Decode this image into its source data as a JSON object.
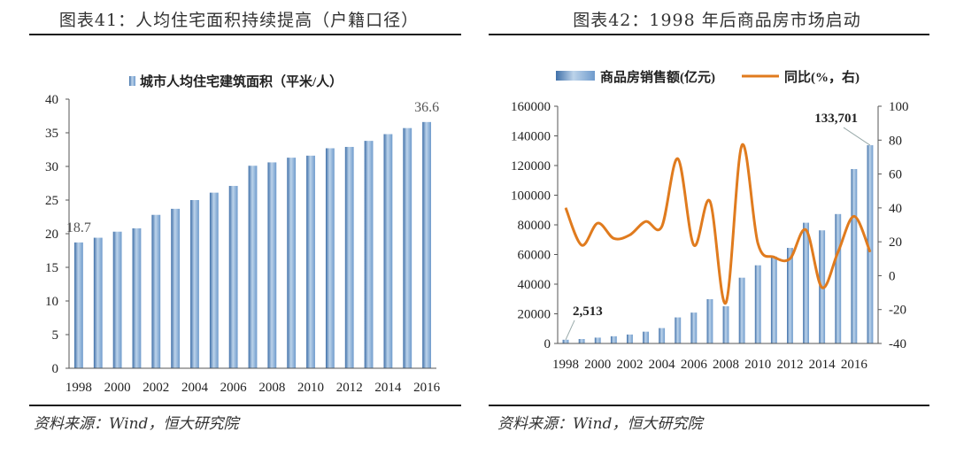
{
  "left": {
    "figure_title": "图表41：人均住宅面积持续提高（户籍口径）",
    "source": "资料来源：Wind，恒大研究院"
  },
  "right": {
    "figure_title": "图表42：1998 年后商品房市场启动",
    "source": "资料来源：Wind，恒大研究院"
  },
  "colors": {
    "bar_light": "#bcd3ea",
    "bar_mid": "#6f9bcc",
    "bar_dark": "#3f6fa8",
    "line_orange": "#e07b1e",
    "axis": "#555555"
  },
  "chart_data": [
    {
      "type": "bar",
      "title": "城市人均住宅建筑面积（平米/人）",
      "legend": "城市人均住宅建筑面积（平米/人）",
      "categories": [
        "1998",
        "1999",
        "2000",
        "2001",
        "2002",
        "2003",
        "2004",
        "2005",
        "2006",
        "2007",
        "2008",
        "2009",
        "2010",
        "2011",
        "2012",
        "2013",
        "2014",
        "2015",
        "2016"
      ],
      "x_tick_labels": [
        "1998",
        "2000",
        "2002",
        "2004",
        "2006",
        "2008",
        "2010",
        "2012",
        "2014",
        "2016"
      ],
      "values": [
        18.7,
        19.4,
        20.3,
        20.8,
        22.8,
        23.7,
        25.0,
        26.1,
        27.1,
        30.1,
        30.6,
        31.3,
        31.6,
        32.7,
        32.9,
        33.8,
        34.8,
        35.7,
        36.6
      ],
      "ylim": [
        0,
        40
      ],
      "yticks": [
        0,
        5,
        10,
        15,
        20,
        25,
        30,
        35,
        40
      ],
      "annotations": [
        {
          "category": "1998",
          "text": "18.7"
        },
        {
          "category": "2016",
          "text": "36.6"
        }
      ],
      "xlabel": "",
      "ylabel": ""
    },
    {
      "type": "bar+line",
      "categories": [
        "1998",
        "1999",
        "2000",
        "2001",
        "2002",
        "2003",
        "2004",
        "2005",
        "2006",
        "2007",
        "2008",
        "2009",
        "2010",
        "2011",
        "2012",
        "2013",
        "2014",
        "2015",
        "2016",
        "2017"
      ],
      "x_tick_labels": [
        "1998",
        "2000",
        "2002",
        "2004",
        "2006",
        "2008",
        "2010",
        "2012",
        "2014",
        "2016"
      ],
      "series": [
        {
          "name": "商品房销售额(亿元)",
          "type": "bar",
          "axis": "left",
          "values": [
            2513,
            2988,
            3935,
            4863,
            6032,
            7956,
            10376,
            17576,
            20826,
            29889,
            25068,
            44355,
            52721,
            58589,
            64456,
            81428,
            76292,
            87281,
            117627,
            133701
          ]
        },
        {
          "name": "同比(%，右)",
          "type": "line",
          "axis": "right",
          "values": [
            40,
            18,
            31,
            22,
            24,
            32,
            29,
            69,
            18,
            44,
            -16,
            77,
            19,
            11,
            10,
            27,
            -7,
            14,
            35,
            14
          ]
        }
      ],
      "ylim_left": [
        0,
        160000
      ],
      "yticks_left": [
        0,
        20000,
        40000,
        60000,
        80000,
        100000,
        120000,
        140000,
        160000
      ],
      "ylim_right": [
        -40,
        100
      ],
      "yticks_right": [
        -40,
        -20,
        0,
        20,
        40,
        60,
        80,
        100
      ],
      "annotations": [
        {
          "category": "1998",
          "text": "2,513"
        },
        {
          "category": "2017",
          "text": "133,701"
        }
      ]
    }
  ]
}
